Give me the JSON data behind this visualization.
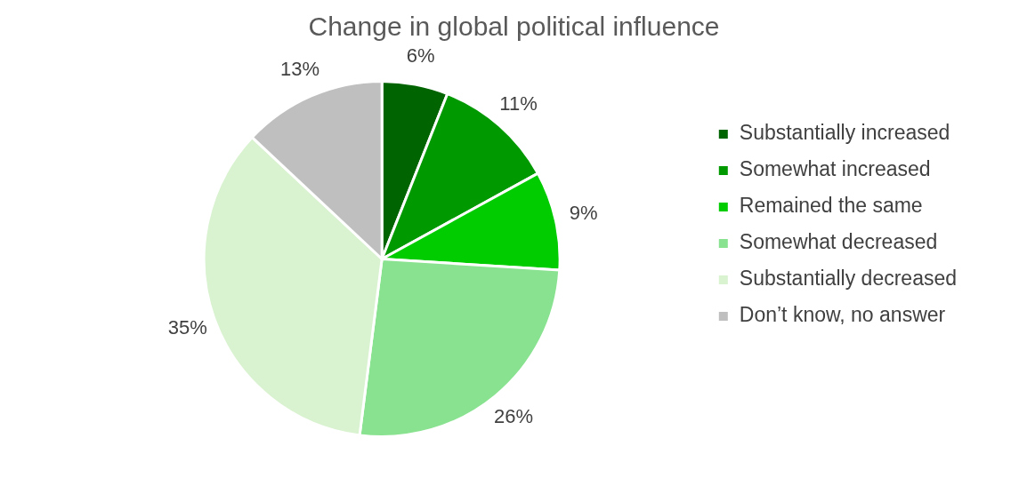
{
  "chart_data": {
    "type": "pie",
    "title": "Change in global political influence",
    "categories": [
      "Substantially increased",
      "Somewhat increased",
      "Remained the same",
      "Somewhat decreased",
      "Substantially decreased",
      "Don’t know, no answer"
    ],
    "values": [
      6,
      11,
      9,
      26,
      35,
      13
    ],
    "value_labels": [
      "6%",
      "11%",
      "9%",
      "26%",
      "35%",
      "13%"
    ],
    "colors": [
      "#006400",
      "#009900",
      "#00cc00",
      "#88e28f",
      "#d9f2d0",
      "#bfbfbf"
    ],
    "legend": "right"
  }
}
